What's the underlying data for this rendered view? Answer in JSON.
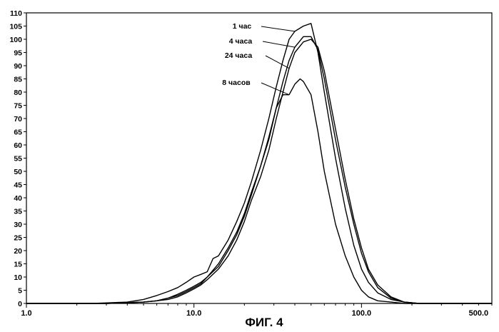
{
  "caption": "ФИГ. 4",
  "chart_data": {
    "type": "line",
    "title": "",
    "xlabel": "",
    "ylabel": "",
    "x_scale": "log",
    "xlim": [
      1.0,
      600.0
    ],
    "ylim": [
      0,
      110
    ],
    "grid": false,
    "x_ticks": [
      {
        "value": 1,
        "label": "1.0"
      },
      {
        "value": 10,
        "label": "10.0"
      },
      {
        "value": 100,
        "label": "100.0"
      },
      {
        "value": 500,
        "label": "500.0"
      }
    ],
    "y_ticks": [
      0,
      5,
      10,
      15,
      20,
      25,
      30,
      35,
      40,
      45,
      50,
      55,
      60,
      65,
      70,
      75,
      80,
      85,
      90,
      95,
      100,
      105,
      110
    ],
    "series": [
      {
        "name": "1 час",
        "x": [
          1.0,
          2.5,
          4.0,
          5.0,
          6.0,
          7.0,
          8.0,
          9.0,
          10.0,
          11.0,
          12.0,
          13.0,
          14.0,
          16.0,
          18.0,
          20.0,
          22.0,
          25.0,
          28.0,
          31.0,
          34.0,
          37.0,
          40.0,
          45.0,
          50.0,
          55.0,
          60.0,
          70.0,
          80.0,
          90.0,
          100.0,
          110.0,
          125.0,
          150.0,
          180.0,
          220.0,
          600.0
        ],
        "y": [
          0,
          0,
          0.5,
          1.5,
          3,
          4.5,
          6,
          8,
          10,
          11,
          12,
          17,
          18,
          24,
          31,
          38,
          46,
          58,
          70,
          82,
          92,
          100,
          103,
          105,
          106,
          95,
          80,
          55,
          36,
          22,
          13,
          8,
          4,
          1.5,
          0.5,
          0,
          0
        ],
        "label_anchor": [
          40.0,
          103
        ]
      },
      {
        "name": "4 часа",
        "x": [
          1.0,
          3.0,
          5.0,
          6.0,
          7.0,
          8.0,
          9.0,
          10.0,
          11.0,
          12.0,
          14.0,
          16.0,
          18.0,
          20.0,
          22.0,
          25.0,
          28.0,
          31.0,
          34.0,
          37.0,
          40.0,
          45.0,
          50.0,
          55.0,
          60.0,
          70.0,
          80.0,
          90.0,
          100.0,
          110.0,
          125.0,
          150.0,
          180.0,
          220.0,
          600.0
        ],
        "y": [
          0,
          0,
          0.5,
          1,
          2,
          3.5,
          5,
          6.5,
          8,
          10,
          15,
          21,
          27,
          34,
          42,
          52,
          62,
          74,
          84,
          92,
          97,
          101,
          101,
          96,
          85,
          62,
          44,
          30,
          19,
          12,
          6,
          2,
          0.5,
          0,
          0
        ],
        "label_anchor": [
          40.0,
          97
        ]
      },
      {
        "name": "24 часа",
        "x": [
          1.0,
          3.0,
          5.0,
          6.0,
          7.0,
          8.0,
          9.0,
          10.0,
          11.0,
          12.0,
          14.0,
          16.0,
          18.0,
          20.0,
          22.0,
          25.0,
          28.0,
          31.0,
          34.0,
          37.0,
          40.0,
          45.0,
          50.0,
          55.0,
          60.0,
          70.0,
          80.0,
          90.0,
          100.0,
          110.0,
          125.0,
          150.0,
          180.0,
          220.0,
          600.0
        ],
        "y": [
          0,
          0,
          0.5,
          1,
          1.5,
          2.5,
          4,
          5.5,
          7,
          9,
          13,
          18,
          24,
          31,
          39,
          48,
          58,
          70,
          80,
          89,
          95,
          99,
          100,
          97,
          88,
          66,
          47,
          32,
          21,
          13,
          7,
          2.5,
          0.5,
          0,
          0
        ],
        "label_anchor": [
          37.0,
          89
        ]
      },
      {
        "name": "8 часов",
        "x": [
          1.0,
          3.0,
          5.0,
          6.0,
          7.0,
          8.0,
          9.0,
          10.0,
          11.0,
          12.0,
          14.0,
          16.0,
          18.0,
          20.0,
          22.0,
          25.0,
          28.0,
          31.0,
          34.0,
          37.0,
          40.0,
          43.0,
          45.0,
          50.0,
          55.0,
          60.0,
          70.0,
          80.0,
          90.0,
          100.0,
          110.0,
          125.0,
          150.0,
          180.0,
          600.0
        ],
        "y": [
          0,
          0,
          0.5,
          1,
          2,
          3,
          4.5,
          6,
          7.5,
          10,
          14,
          20,
          26,
          33,
          41,
          52,
          63,
          74,
          79,
          79,
          83,
          85,
          84,
          79,
          65,
          50,
          30,
          18,
          10,
          5,
          2.5,
          1,
          0.5,
          0,
          0
        ],
        "label_anchor": [
          37.0,
          79
        ]
      }
    ],
    "annotations": [
      {
        "text": "1 час",
        "series": "1 час"
      },
      {
        "text": "4 часа",
        "series": "4 часа"
      },
      {
        "text": "24 часа",
        "series": "24 часа"
      },
      {
        "text": "8 часов",
        "series": "8 часов"
      }
    ]
  }
}
